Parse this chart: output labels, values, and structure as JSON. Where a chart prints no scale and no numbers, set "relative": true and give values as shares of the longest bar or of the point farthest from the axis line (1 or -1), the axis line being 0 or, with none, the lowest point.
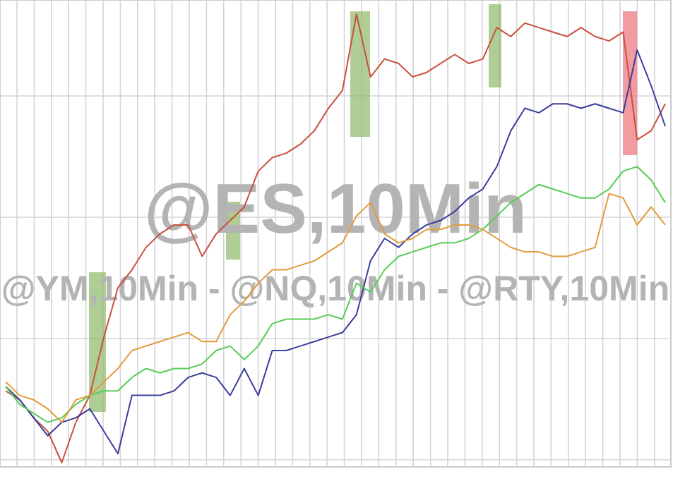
{
  "chart_data": {
    "type": "line",
    "relative": true,
    "tick_labels": false,
    "grid": true,
    "marker": "none",
    "line_style": "solid",
    "categories": [
      null,
      null,
      null,
      null,
      null,
      null,
      null,
      null,
      null,
      null,
      null,
      null,
      null,
      null,
      null,
      null,
      null,
      null,
      null,
      null,
      null,
      null,
      null,
      null,
      null,
      null,
      null,
      null,
      null,
      null,
      null,
      null,
      null,
      null,
      null,
      null,
      null,
      null,
      null,
      null,
      null,
      null,
      null,
      null,
      null,
      null,
      null,
      null
    ],
    "annotations": [
      "@ES,10Min",
      "@YM,10Min - @NQ,10Min - @RTY,10Min"
    ],
    "series": [
      {
        "color": "#c8503e",
        "values": [
          0.16,
          0.14,
          0.1,
          0.07,
          0,
          0.09,
          0.15,
          0.28,
          0.39,
          0.43,
          0.48,
          0.51,
          0.53,
          0.53,
          0.46,
          0.51,
          0.54,
          0.57,
          0.65,
          0.68,
          0.69,
          0.71,
          0.74,
          0.79,
          0.83,
          1,
          0.86,
          0.9,
          0.89,
          0.86,
          0.87,
          0.89,
          0.91,
          0.89,
          0.9,
          0.97,
          0.95,
          0.98,
          0.97,
          0.96,
          0.95,
          0.97,
          0.95,
          0.94,
          0.96,
          0.72,
          0.74,
          0.8
        ]
      },
      {
        "color": "#3b3d9c",
        "values": [
          0.17,
          0.14,
          0.1,
          0.06,
          0.09,
          0.1,
          0.12,
          0.07,
          0.02,
          0.15,
          0.15,
          0.15,
          0.16,
          0.19,
          0.2,
          0.19,
          0.15,
          0.21,
          0.15,
          0.25,
          0.25,
          0.26,
          0.27,
          0.28,
          0.29,
          0.33,
          0.45,
          0.5,
          0.48,
          0.51,
          0.53,
          0.54,
          0.56,
          0.59,
          0.61,
          0.66,
          0.74,
          0.79,
          0.78,
          0.8,
          0.8,
          0.79,
          0.8,
          0.79,
          0.78,
          0.92,
          0.84,
          0.75
        ]
      },
      {
        "color": "#57cc57",
        "values": [
          0.17,
          0.13,
          0.11,
          0.09,
          0.1,
          0.13,
          0.15,
          0.16,
          0.16,
          0.19,
          0.21,
          0.2,
          0.21,
          0.21,
          0.22,
          0.25,
          0.26,
          0.23,
          0.26,
          0.31,
          0.32,
          0.32,
          0.32,
          0.33,
          0.32,
          0.4,
          0.38,
          0.43,
          0.46,
          0.47,
          0.48,
          0.49,
          0.49,
          0.5,
          0.52,
          0.55,
          0.58,
          0.6,
          0.62,
          0.61,
          0.6,
          0.59,
          0.59,
          0.61,
          0.65,
          0.66,
          0.63,
          0.58
        ]
      },
      {
        "color": "#e39b3c",
        "values": [
          0.18,
          0.15,
          0.14,
          0.12,
          0.09,
          0.14,
          0.15,
          0.18,
          0.21,
          0.25,
          0.26,
          0.27,
          0.28,
          0.29,
          0.27,
          0.27,
          0.33,
          0.36,
          0.4,
          0.43,
          0.43,
          0.44,
          0.45,
          0.47,
          0.49,
          0.55,
          0.58,
          0.51,
          0.49,
          0.5,
          0.52,
          0.52,
          0.53,
          0.53,
          0.52,
          0.5,
          0.48,
          0.47,
          0.47,
          0.46,
          0.46,
          0.47,
          0.48,
          0.6,
          0.59,
          0.53,
          0.57,
          0.53
        ]
      }
    ]
  }
}
